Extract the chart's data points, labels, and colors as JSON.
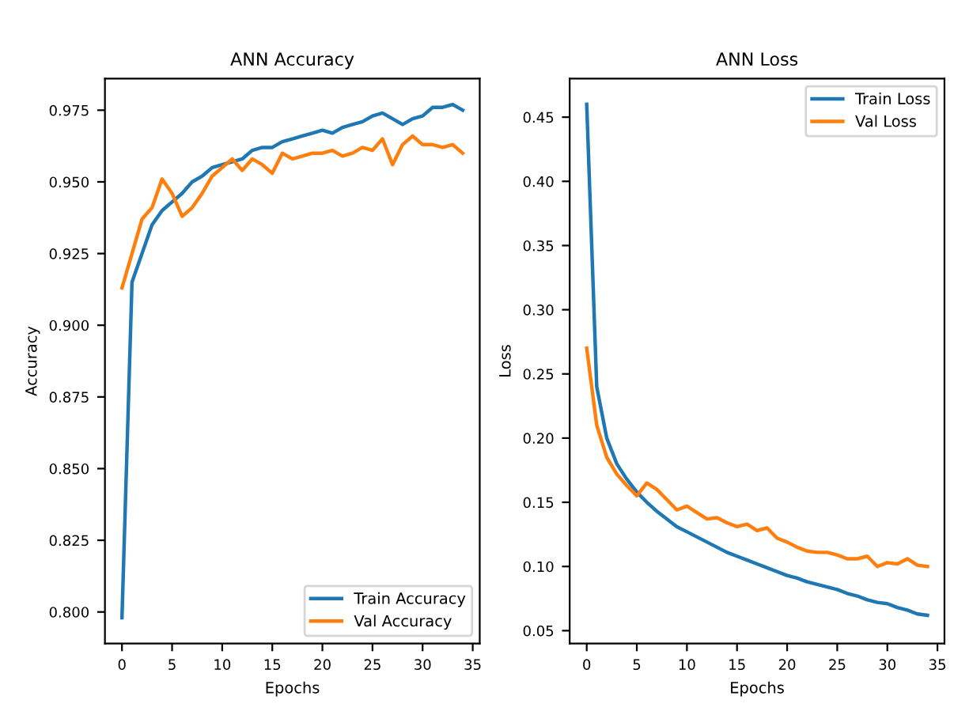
{
  "chart_data": [
    {
      "type": "line",
      "title": "ANN Accuracy",
      "xlabel": "Epochs",
      "ylabel": "Accuracy",
      "x": [
        0,
        1,
        2,
        3,
        4,
        5,
        6,
        7,
        8,
        9,
        10,
        11,
        12,
        13,
        14,
        15,
        16,
        17,
        18,
        19,
        20,
        21,
        22,
        23,
        24,
        25,
        26,
        27,
        28,
        29,
        30,
        31,
        32,
        33,
        34
      ],
      "series": [
        {
          "name": "Train Accuracy",
          "color": "#1f77b4",
          "values": [
            0.798,
            0.915,
            0.925,
            0.935,
            0.94,
            0.943,
            0.946,
            0.95,
            0.952,
            0.955,
            0.956,
            0.957,
            0.958,
            0.961,
            0.962,
            0.962,
            0.964,
            0.965,
            0.966,
            0.967,
            0.968,
            0.967,
            0.969,
            0.97,
            0.971,
            0.973,
            0.974,
            0.972,
            0.97,
            0.972,
            0.973,
            0.976,
            0.976,
            0.977,
            0.975
          ]
        },
        {
          "name": "Val Accuracy",
          "color": "#ff7f0e",
          "values": [
            0.913,
            0.925,
            0.937,
            0.941,
            0.951,
            0.946,
            0.938,
            0.941,
            0.946,
            0.952,
            0.955,
            0.958,
            0.954,
            0.958,
            0.956,
            0.953,
            0.96,
            0.958,
            0.959,
            0.96,
            0.96,
            0.961,
            0.959,
            0.96,
            0.962,
            0.961,
            0.965,
            0.956,
            0.963,
            0.966,
            0.963,
            0.963,
            0.962,
            0.963,
            0.96
          ]
        }
      ],
      "xlim": [
        -1.7,
        35.7
      ],
      "xticks": [
        0,
        5,
        10,
        15,
        20,
        25,
        30,
        35
      ],
      "ylim": [
        0.789,
        0.986
      ],
      "yticks": [
        {
          "value": 0.8,
          "label": "0.800"
        },
        {
          "value": 0.825,
          "label": "0.825"
        },
        {
          "value": 0.85,
          "label": "0.850"
        },
        {
          "value": 0.875,
          "label": "0.875"
        },
        {
          "value": 0.9,
          "label": "0.900"
        },
        {
          "value": 0.925,
          "label": "0.925"
        },
        {
          "value": 0.95,
          "label": "0.950"
        },
        {
          "value": 0.975,
          "label": "0.975"
        }
      ],
      "legend": "bottom right",
      "grid": false
    },
    {
      "type": "line",
      "title": "ANN Loss",
      "xlabel": "Epochs",
      "ylabel": "Loss",
      "x": [
        0,
        1,
        2,
        3,
        4,
        5,
        6,
        7,
        8,
        9,
        10,
        11,
        12,
        13,
        14,
        15,
        16,
        17,
        18,
        19,
        20,
        21,
        22,
        23,
        24,
        25,
        26,
        27,
        28,
        29,
        30,
        31,
        32,
        33,
        34
      ],
      "series": [
        {
          "name": "Train Loss",
          "color": "#1f77b4",
          "values": [
            0.46,
            0.24,
            0.2,
            0.18,
            0.168,
            0.158,
            0.15,
            0.143,
            0.137,
            0.131,
            0.127,
            0.123,
            0.119,
            0.115,
            0.111,
            0.108,
            0.105,
            0.102,
            0.099,
            0.096,
            0.093,
            0.091,
            0.088,
            0.086,
            0.084,
            0.082,
            0.079,
            0.077,
            0.074,
            0.072,
            0.071,
            0.068,
            0.066,
            0.063,
            0.062
          ]
        },
        {
          "name": "Val Loss",
          "color": "#ff7f0e",
          "values": [
            0.27,
            0.21,
            0.185,
            0.172,
            0.163,
            0.155,
            0.165,
            0.16,
            0.152,
            0.144,
            0.147,
            0.142,
            0.137,
            0.138,
            0.134,
            0.131,
            0.133,
            0.128,
            0.13,
            0.122,
            0.119,
            0.115,
            0.112,
            0.111,
            0.111,
            0.109,
            0.106,
            0.106,
            0.108,
            0.1,
            0.103,
            0.102,
            0.106,
            0.101,
            0.1
          ]
        }
      ],
      "xlim": [
        -1.7,
        35.7
      ],
      "xticks": [
        0,
        5,
        10,
        15,
        20,
        25,
        30,
        35
      ],
      "ylim": [
        0.04,
        0.48
      ],
      "yticks": [
        {
          "value": 0.05,
          "label": "0.05"
        },
        {
          "value": 0.1,
          "label": "0.10"
        },
        {
          "value": 0.15,
          "label": "0.15"
        },
        {
          "value": 0.2,
          "label": "0.20"
        },
        {
          "value": 0.25,
          "label": "0.25"
        },
        {
          "value": 0.3,
          "label": "0.30"
        },
        {
          "value": 0.35,
          "label": "0.35"
        },
        {
          "value": 0.4,
          "label": "0.40"
        },
        {
          "value": 0.45,
          "label": "0.45"
        }
      ],
      "legend": "top right",
      "grid": false
    }
  ]
}
